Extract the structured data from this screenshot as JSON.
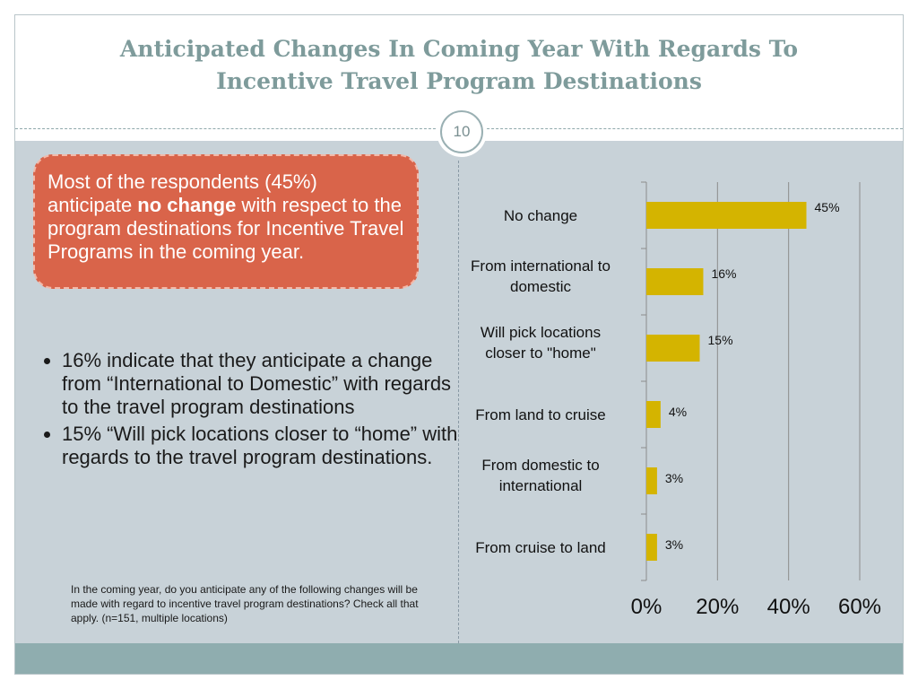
{
  "slide": {
    "title_line1": "Anticipated Changes In Coming Year With Regards To",
    "title_line2": "Incentive Travel Program Destinations",
    "page_number": "10"
  },
  "callout": {
    "text_before": "Most of the respondents (45%) anticipate ",
    "text_bold": "no change",
    "text_after": " with respect to the program destinations for Incentive Travel Programs in the coming year."
  },
  "bullets": [
    "16% indicate that they anticipate a change from “International to Domestic” with regards to the travel program destinations",
    "15% “Will pick locations closer to “home” with regards to the travel program destinations."
  ],
  "note": "In the coming year, do you anticipate any of the following changes will be made with regard to incentive travel program destinations?  Check all that apply. (n=151, multiple locations)",
  "colors": {
    "bar": "#d4b400",
    "callout": "#d9644a",
    "title": "#7e9b9b",
    "content_bg": "#c8d2d8",
    "footer": "#8fadaf"
  },
  "chart_data": {
    "type": "bar",
    "orientation": "horizontal",
    "categories": [
      "No change",
      "From international to domestic",
      "Will pick locations closer to \"home\"",
      "From land to cruise",
      "From domestic to international",
      "From cruise to land"
    ],
    "category_lines": [
      [
        "No change"
      ],
      [
        "From international to",
        "domestic"
      ],
      [
        "Will pick locations",
        "closer to \"home\""
      ],
      [
        "From land to cruise"
      ],
      [
        "From domestic to",
        "international"
      ],
      [
        "From cruise to land"
      ]
    ],
    "values": [
      45,
      16,
      15,
      4,
      3,
      3
    ],
    "value_labels": [
      "45%",
      "16%",
      "15%",
      "4%",
      "3%",
      "3%"
    ],
    "xlim": [
      0,
      60
    ],
    "xticks": [
      0,
      20,
      40,
      60
    ],
    "xtick_labels": [
      "0%",
      "20%",
      "40%",
      "60%"
    ],
    "grid": true
  }
}
